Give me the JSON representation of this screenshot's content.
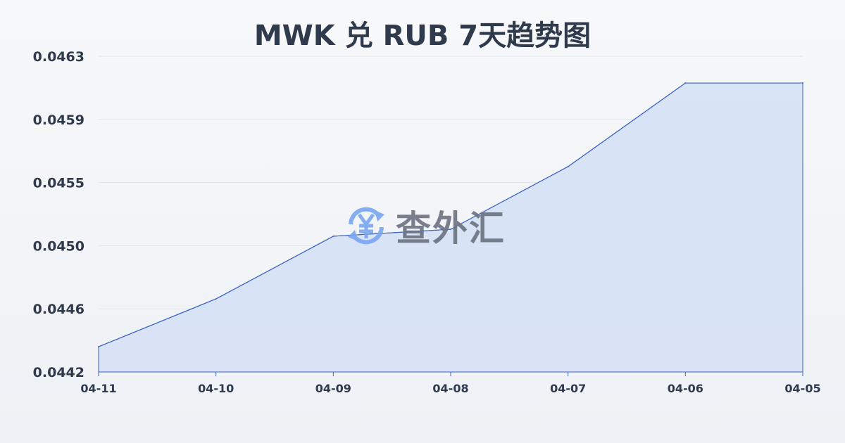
{
  "chart_data": {
    "type": "area",
    "title": "MWK 兑 RUB 7天趋势图",
    "categories": [
      "04-11",
      "04-10",
      "04-09",
      "04-08",
      "04-07",
      "04-06",
      "04-05"
    ],
    "values": [
      0.044368,
      0.044686,
      0.045103,
      0.045149,
      0.045566,
      0.046122,
      0.046122
    ],
    "ylim": [
      0.0442,
      0.0463
    ],
    "yticks": [
      "0.0442",
      "0.0446",
      "0.0450",
      "0.0455",
      "0.0459",
      "0.0463"
    ],
    "grid": true,
    "line_color": "#3a63c4",
    "fill_color": "#d6e1f5"
  },
  "watermark": {
    "text": "查外汇",
    "icon": "yen-exchange-icon",
    "color": "#7aa7f0"
  }
}
